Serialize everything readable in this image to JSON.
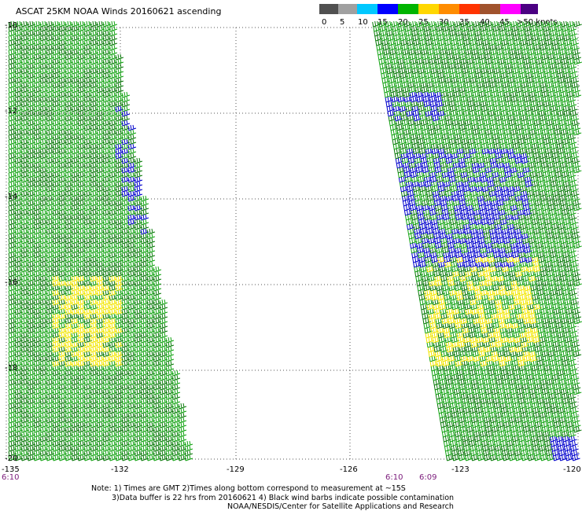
{
  "title": "ASCAT 25KM NOAA Winds 20160621 ascending",
  "legend": {
    "unit": "knots",
    "labels": [
      "0",
      "5",
      "10",
      "15",
      "20",
      "25",
      "30",
      "35",
      "40",
      "45",
      ">50 knots"
    ],
    "colors": [
      "#505050",
      "#a0a0a0",
      "#00c8ff",
      "#0000ff",
      "#00b400",
      "#ffd700",
      "#ff8c00",
      "#ff3300",
      "#a0522d",
      "#ff00ff",
      "#4b0082"
    ]
  },
  "map": {
    "lat_labels": [
      "-10",
      "-12",
      "-14",
      "-16",
      "-18",
      "-20"
    ],
    "lon_labels": [
      "-135",
      "-132",
      "-129",
      "-126",
      "-123",
      "-120"
    ],
    "time_labels": [
      "6:10",
      "6:10",
      "6:09"
    ]
  },
  "notes": {
    "line1": "Note: 1) Times are GMT 2)Times along bottom correspond to measurement at ~15S",
    "line2": "3)Data buffer is 22 hrs from 20160621 4) Black wind barbs indicate possible contamination",
    "line3": "NOAA/NESDIS/Center for Satellite Applications and Research"
  },
  "barb_colors": {
    "green": "#12a312",
    "dark_green": "#0a7a0a",
    "blue": "#0000cc",
    "yellow": "#f2e600"
  }
}
